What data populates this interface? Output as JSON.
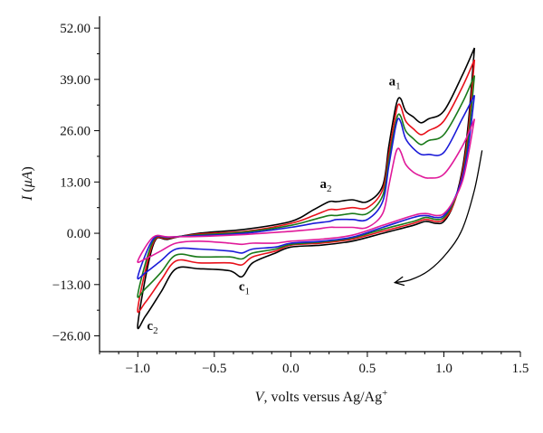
{
  "chart_data": {
    "type": "line",
    "xlabel_var": "V",
    "xlabel_rest": ", volts versus Ag/Ag",
    "xlabel_sup": "+",
    "ylabel_var": "I",
    "ylabel_open": " (",
    "ylabel_unit": "μA",
    "ylabel_close": ")",
    "xlim": [
      -1.25,
      1.5
    ],
    "ylim": [
      -30,
      55
    ],
    "x_ticks": [
      -1.0,
      -0.5,
      0.0,
      0.5,
      1.0,
      1.5
    ],
    "x_tick_labels": [
      "−1.0",
      "−0.5",
      "0.0",
      "0.5",
      "1.0",
      "1.5"
    ],
    "y_ticks": [
      -26,
      -13,
      0,
      13,
      26,
      39,
      52
    ],
    "y_tick_labels": [
      "−26.00",
      "−13.00",
      "0.00",
      "13.00",
      "26.00",
      "39.00",
      "52.00"
    ],
    "grid": false,
    "legend": "none",
    "series": [
      {
        "color": "#000000",
        "x": [
          1.2,
          1.12,
          1.0,
          0.9,
          0.85,
          0.8,
          0.75,
          0.72,
          0.7,
          0.68,
          0.64,
          0.6,
          0.5,
          0.4,
          0.3,
          0.25,
          0.15,
          0.0,
          -0.3,
          -0.6,
          -0.8,
          -0.9,
          -1.0,
          -0.95,
          -0.85,
          -0.75,
          -0.6,
          -0.4,
          -0.32,
          -0.25,
          -0.1,
          0.0,
          0.2,
          0.4,
          0.6,
          0.8,
          0.88,
          0.95,
          1.0,
          1.06,
          1.12,
          1.16,
          1.2
        ],
        "y": [
          47,
          40,
          31,
          29,
          28,
          29.5,
          31,
          34,
          34,
          31,
          22,
          12,
          8,
          8.5,
          8,
          8,
          6,
          3,
          1,
          0,
          -1.5,
          -3,
          -23,
          -21,
          -15,
          -9,
          -9,
          -9.5,
          -11,
          -7.5,
          -5,
          -3.5,
          -3,
          -2,
          0,
          2,
          3,
          2.5,
          3,
          7,
          16,
          28,
          47
        ]
      },
      {
        "color": "#e8101a",
        "x": [
          1.2,
          1.12,
          1.0,
          0.9,
          0.85,
          0.8,
          0.75,
          0.72,
          0.7,
          0.68,
          0.64,
          0.6,
          0.5,
          0.4,
          0.3,
          0.25,
          0.15,
          0.0,
          -0.3,
          -0.6,
          -0.8,
          -0.9,
          -1.0,
          -0.95,
          -0.85,
          -0.75,
          -0.6,
          -0.4,
          -0.32,
          -0.25,
          -0.1,
          0.0,
          0.2,
          0.4,
          0.6,
          0.8,
          0.88,
          0.95,
          1.0,
          1.06,
          1.12,
          1.16,
          1.2
        ],
        "y": [
          44,
          37,
          28.5,
          26,
          25,
          26.5,
          28.5,
          32,
          32.5,
          29,
          20,
          11,
          6.5,
          6.5,
          6,
          6,
          4.5,
          2.5,
          0.5,
          -0.2,
          -1.3,
          -2.5,
          -19,
          -17.5,
          -12,
          -7,
          -7.5,
          -7.5,
          -8,
          -6,
          -4.5,
          -3,
          -2.5,
          -1.5,
          0.5,
          2.5,
          3.5,
          3,
          3.5,
          7,
          15,
          26,
          44
        ]
      },
      {
        "color": "#1a7a1a",
        "x": [
          1.2,
          1.12,
          1.0,
          0.9,
          0.85,
          0.8,
          0.75,
          0.72,
          0.7,
          0.68,
          0.64,
          0.6,
          0.5,
          0.4,
          0.3,
          0.25,
          0.15,
          0.0,
          -0.3,
          -0.6,
          -0.8,
          -0.9,
          -1.0,
          -0.95,
          -0.85,
          -0.75,
          -0.6,
          -0.4,
          -0.32,
          -0.25,
          -0.1,
          0.0,
          0.2,
          0.4,
          0.6,
          0.8,
          0.88,
          0.95,
          1.0,
          1.06,
          1.12,
          1.16,
          1.2
        ],
        "y": [
          40,
          33,
          25,
          23.5,
          22.5,
          24,
          26,
          29.5,
          30,
          27,
          18.5,
          9.5,
          5,
          5,
          4.5,
          4.5,
          3.5,
          2,
          0.3,
          -0.4,
          -1.1,
          -2,
          -15.5,
          -14,
          -10,
          -5.5,
          -6,
          -6,
          -6.5,
          -5,
          -4,
          -2.8,
          -2.2,
          -1.2,
          1,
          3,
          4,
          3.5,
          4,
          7.5,
          14,
          24,
          40
        ]
      },
      {
        "color": "#1a1ad8",
        "x": [
          1.2,
          1.12,
          1.0,
          0.9,
          0.85,
          0.8,
          0.75,
          0.72,
          0.7,
          0.68,
          0.64,
          0.6,
          0.5,
          0.4,
          0.3,
          0.25,
          0.15,
          0.0,
          -0.3,
          -0.6,
          -0.8,
          -0.9,
          -1.0,
          -0.95,
          -0.85,
          -0.75,
          -0.6,
          -0.4,
          -0.32,
          -0.25,
          -0.1,
          0.0,
          0.2,
          0.4,
          0.6,
          0.8,
          0.88,
          0.95,
          1.0,
          1.06,
          1.12,
          1.16,
          1.2
        ],
        "y": [
          35,
          29,
          20.5,
          20,
          20,
          21.5,
          24,
          28,
          29,
          26,
          17,
          8,
          3.5,
          3.5,
          3.5,
          3,
          2.5,
          1.5,
          0,
          -0.6,
          -1,
          -1.5,
          -11,
          -10,
          -7,
          -4,
          -4,
          -4.5,
          -5,
          -4,
          -3.5,
          -2.5,
          -2,
          -1,
          1.5,
          4,
          4.5,
          4,
          4.5,
          8,
          14,
          22,
          35
        ]
      },
      {
        "color": "#e01a9a",
        "x": [
          1.2,
          1.12,
          1.0,
          0.9,
          0.85,
          0.8,
          0.75,
          0.72,
          0.7,
          0.68,
          0.64,
          0.6,
          0.5,
          0.4,
          0.3,
          0.25,
          0.15,
          0.0,
          -0.3,
          -0.6,
          -0.8,
          -0.9,
          -1.0,
          -0.95,
          -0.85,
          -0.75,
          -0.6,
          -0.4,
          -0.32,
          -0.25,
          -0.1,
          0.0,
          0.2,
          0.4,
          0.6,
          0.8,
          0.88,
          0.95,
          1.0,
          1.06,
          1.12,
          1.16,
          1.2
        ],
        "y": [
          29,
          22,
          15,
          14,
          14.5,
          15.5,
          17.5,
          20.5,
          21.5,
          19.5,
          12,
          5,
          1.5,
          1.5,
          1.5,
          1.5,
          1,
          0.5,
          -0.3,
          -0.8,
          -0.9,
          -1,
          -7,
          -6.5,
          -4.5,
          -2.5,
          -2,
          -2.5,
          -2.8,
          -2.5,
          -2.5,
          -2,
          -1.5,
          -0.5,
          2,
          4.5,
          5,
          4.5,
          5,
          8,
          13,
          20,
          29
        ]
      }
    ],
    "annotations": [
      {
        "label": "a",
        "sub": "1",
        "x": 0.64,
        "y": 37.5
      },
      {
        "label": "a",
        "sub": "2",
        "x": 0.19,
        "y": 11.5
      },
      {
        "label": "c",
        "sub": "1",
        "x": -0.34,
        "y": -14.5
      },
      {
        "label": "c",
        "sub": "2",
        "x": -0.94,
        "y": -24.5
      }
    ],
    "scan_arrow": {
      "x": [
        1.25,
        1.2,
        1.12,
        1.02,
        0.9,
        0.78,
        0.68
      ],
      "y": [
        21,
        11,
        1,
        -5,
        -9.5,
        -11.8,
        -12.5
      ]
    }
  }
}
